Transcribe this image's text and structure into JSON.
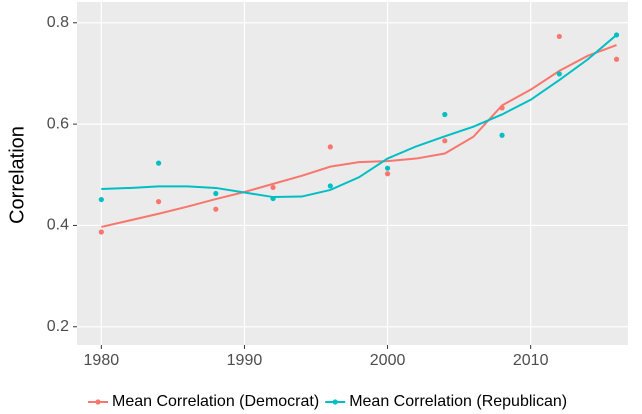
{
  "chart_data": {
    "type": "scatter",
    "ylabel": "Correlation",
    "xlim": [
      1978.3,
      2016.8
    ],
    "ylim": [
      0.164,
      0.841
    ],
    "xticks": [
      1980,
      1990,
      2000,
      2010
    ],
    "yticks": [
      0.2,
      0.4,
      0.6,
      0.8
    ],
    "grid": true,
    "legend": "bottom",
    "series": [
      {
        "name": "Mean Correlation (Democrat)",
        "color": "#f8766d",
        "x": [
          1980,
          1984,
          1988,
          1992,
          1996,
          2000,
          2004,
          2008,
          2012,
          2016
        ],
        "values": [
          0.387,
          0.447,
          0.432,
          0.475,
          0.555,
          0.502,
          0.567,
          0.632,
          0.773,
          0.728
        ],
        "smooth": {
          "x": [
            1980,
            1982,
            1984,
            1986,
            1988,
            1990,
            1992,
            1994,
            1996,
            1998,
            2000,
            2002,
            2004,
            2006,
            2008,
            2010,
            2012,
            2014,
            2016
          ],
          "values": [
            0.397,
            0.41,
            0.423,
            0.437,
            0.452,
            0.466,
            0.482,
            0.498,
            0.516,
            0.525,
            0.527,
            0.532,
            0.542,
            0.575,
            0.637,
            0.668,
            0.705,
            0.735,
            0.756
          ]
        }
      },
      {
        "name": "Mean Correlation (Republican)",
        "color": "#00bfc4",
        "x": [
          1980,
          1984,
          1988,
          1992,
          1996,
          2000,
          2004,
          2008,
          2012,
          2016
        ],
        "values": [
          0.451,
          0.523,
          0.463,
          0.453,
          0.478,
          0.513,
          0.619,
          0.578,
          0.699,
          0.776
        ],
        "smooth": {
          "x": [
            1980,
            1982,
            1984,
            1986,
            1988,
            1990,
            1992,
            1994,
            1996,
            1998,
            2000,
            2002,
            2004,
            2006,
            2008,
            2010,
            2012,
            2014,
            2016
          ],
          "values": [
            0.472,
            0.474,
            0.477,
            0.477,
            0.474,
            0.465,
            0.456,
            0.457,
            0.47,
            0.495,
            0.532,
            0.556,
            0.576,
            0.595,
            0.619,
            0.648,
            0.687,
            0.728,
            0.776
          ]
        }
      }
    ]
  }
}
